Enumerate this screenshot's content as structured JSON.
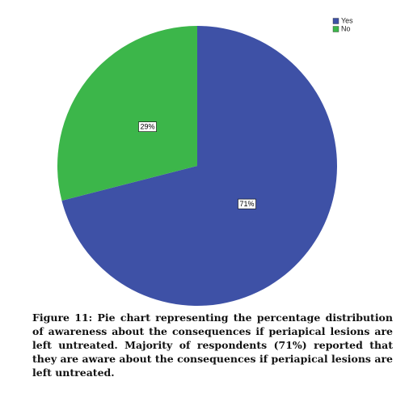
{
  "chart_data": {
    "type": "pie",
    "categories": [
      "Yes",
      "No"
    ],
    "values": [
      71,
      29
    ],
    "value_labels": [
      "71%",
      "29%"
    ],
    "colors": [
      "#3e51a6",
      "#3cb64a"
    ],
    "legend": "top-right",
    "caption": "Figure 11: Pie chart representing the percentage distribution of awareness about the consequences if periapical lesions are left untreated. Majority of respondents (71%) reported that they are aware about the consequences if periapical lesions are left untreated."
  }
}
